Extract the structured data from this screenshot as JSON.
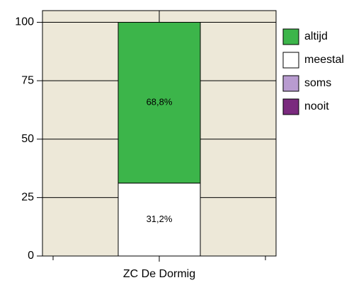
{
  "chart_data": {
    "type": "stacked_bar",
    "categories": [
      "ZC De Dormig"
    ],
    "series": [
      {
        "name": "altijd",
        "color": "#3cb54a",
        "values": [
          68.8
        ],
        "value_labels": [
          "68,8%"
        ]
      },
      {
        "name": "meestal",
        "color": "#ffffff",
        "values": [
          31.2
        ],
        "value_labels": [
          "31,2%"
        ]
      },
      {
        "name": "soms",
        "color": "#b89bd0",
        "values": [
          0
        ]
      },
      {
        "name": "nooit",
        "color": "#7a2a7e",
        "values": [
          0
        ]
      }
    ],
    "ylim": [
      0,
      105
    ],
    "yticks": [
      0,
      25,
      50,
      75,
      100
    ],
    "grid": true,
    "legend": "right"
  }
}
